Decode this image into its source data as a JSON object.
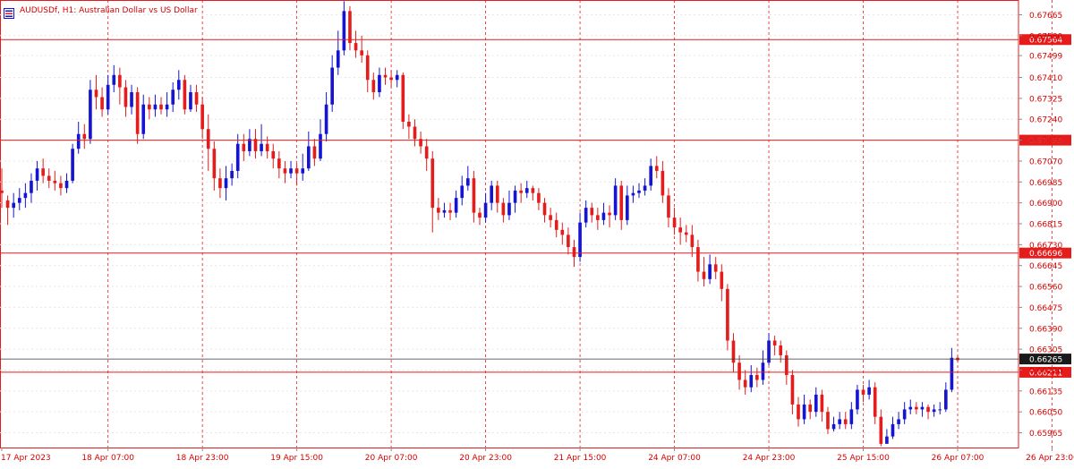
{
  "header": {
    "title": "AUDUSDf, H1:  Australian Dollar vs US Dollar",
    "menu_icon": "chart-menu-icon"
  },
  "colors": {
    "bull": "#1414d2",
    "bear": "#e51c1c",
    "level_line": "#e51c1c",
    "price_line": "#333333",
    "grid": "#e6e6e6",
    "vsep": "#e51c1c",
    "axis_text": "#d40000"
  },
  "chart_data": {
    "type": "candlestick",
    "symbol": "AUDUSDf",
    "timeframe": "H1",
    "title": "AUDUSDf, H1:  Australian Dollar vs US Dollar",
    "ylim": [
      0.65905,
      0.67725
    ],
    "y_ticks": [
      "0.67665",
      "0.67580",
      "0.67499",
      "0.67410",
      "0.67325",
      "0.67240",
      "0.67155",
      "0.67070",
      "0.66985",
      "0.66900",
      "0.66815",
      "0.66730",
      "0.66645",
      "0.66560",
      "0.66475",
      "0.66390",
      "0.66305",
      "0.66220",
      "0.66135",
      "0.66050",
      "0.65965"
    ],
    "x_labels": [
      "17 Apr 2023",
      "18 Apr 07:00",
      "18 Apr 23:00",
      "19 Apr 15:00",
      "20 Apr 07:00",
      "20 Apr 23:00",
      "21 Apr 15:00",
      "24 Apr 07:00",
      "24 Apr 23:00",
      "25 Apr 15:00",
      "26 Apr 07:00",
      "26 Apr 23:00"
    ],
    "levels": [
      {
        "label": "0.67564",
        "value": 0.67564
      },
      {
        "label": "0.67155",
        "value": 0.67155
      },
      {
        "label": "0.66696",
        "value": 0.66696
      },
      {
        "label": "0.66211",
        "value": 0.66211
      }
    ],
    "current_price": {
      "label": "0.66265",
      "value": 0.66265
    },
    "grid": true,
    "candles": [
      [
        0.6695,
        0.6694,
        0.6704,
        0.6688
      ],
      [
        0.6691,
        0.6688,
        0.6693,
        0.6681
      ],
      [
        0.6688,
        0.669,
        0.6694,
        0.6684
      ],
      [
        0.669,
        0.6692,
        0.6696,
        0.6687
      ],
      [
        0.6692,
        0.6694,
        0.6698,
        0.6688
      ],
      [
        0.6694,
        0.6699,
        0.6702,
        0.669
      ],
      [
        0.6699,
        0.6704,
        0.6707,
        0.6695
      ],
      [
        0.6704,
        0.6701,
        0.6708,
        0.6698
      ],
      [
        0.6701,
        0.6699,
        0.6704,
        0.6696
      ],
      [
        0.6699,
        0.6698,
        0.6703,
        0.6695
      ],
      [
        0.6698,
        0.6696,
        0.6701,
        0.6693
      ],
      [
        0.6696,
        0.6699,
        0.6702,
        0.6694
      ],
      [
        0.6699,
        0.6712,
        0.6714,
        0.6698
      ],
      [
        0.6712,
        0.6718,
        0.6723,
        0.671
      ],
      [
        0.6718,
        0.6716,
        0.6722,
        0.6712
      ],
      [
        0.6716,
        0.6736,
        0.674,
        0.6714
      ],
      [
        0.6736,
        0.6733,
        0.6742,
        0.6728
      ],
      [
        0.6733,
        0.6728,
        0.6737,
        0.6725
      ],
      [
        0.6728,
        0.6738,
        0.6742,
        0.6726
      ],
      [
        0.6738,
        0.6742,
        0.6746,
        0.6735
      ],
      [
        0.6742,
        0.6737,
        0.6745,
        0.673
      ],
      [
        0.6737,
        0.6729,
        0.674,
        0.6725
      ],
      [
        0.6729,
        0.6735,
        0.6738,
        0.6726
      ],
      [
        0.6735,
        0.6718,
        0.6737,
        0.6714
      ],
      [
        0.6718,
        0.673,
        0.6734,
        0.6716
      ],
      [
        0.673,
        0.6728,
        0.6733,
        0.6724
      ],
      [
        0.6728,
        0.673,
        0.6734,
        0.6725
      ],
      [
        0.673,
        0.6728,
        0.6733,
        0.6726
      ],
      [
        0.6728,
        0.673,
        0.6735,
        0.6725
      ],
      [
        0.673,
        0.6736,
        0.6739,
        0.6727
      ],
      [
        0.6736,
        0.674,
        0.6744,
        0.6732
      ],
      [
        0.674,
        0.6728,
        0.6742,
        0.6726
      ],
      [
        0.6728,
        0.6735,
        0.6738,
        0.6727
      ],
      [
        0.6735,
        0.673,
        0.6738,
        0.6727
      ],
      [
        0.673,
        0.672,
        0.6733,
        0.6716
      ],
      [
        0.672,
        0.6712,
        0.6726,
        0.6703
      ],
      [
        0.6712,
        0.67,
        0.6715,
        0.6695
      ],
      [
        0.67,
        0.6696,
        0.6704,
        0.6692
      ],
      [
        0.6696,
        0.67,
        0.6705,
        0.6691
      ],
      [
        0.67,
        0.6703,
        0.6706,
        0.6697
      ],
      [
        0.6703,
        0.6714,
        0.6718,
        0.67
      ],
      [
        0.6714,
        0.6711,
        0.6718,
        0.6707
      ],
      [
        0.6711,
        0.6716,
        0.672,
        0.6709
      ],
      [
        0.6716,
        0.6711,
        0.672,
        0.6708
      ],
      [
        0.6711,
        0.6714,
        0.6722,
        0.6709
      ],
      [
        0.6714,
        0.6711,
        0.6717,
        0.6708
      ],
      [
        0.6711,
        0.6708,
        0.6714,
        0.6704
      ],
      [
        0.6708,
        0.6704,
        0.6711,
        0.67
      ],
      [
        0.6704,
        0.6702,
        0.6707,
        0.6698
      ],
      [
        0.6702,
        0.6704,
        0.6707,
        0.67
      ],
      [
        0.6704,
        0.6702,
        0.6706,
        0.6697
      ],
      [
        0.6702,
        0.6704,
        0.671,
        0.6699
      ],
      [
        0.6704,
        0.6713,
        0.6719,
        0.6703
      ],
      [
        0.6713,
        0.6708,
        0.6716,
        0.6705
      ],
      [
        0.6708,
        0.6718,
        0.6724,
        0.6707
      ],
      [
        0.6718,
        0.673,
        0.6735,
        0.6715
      ],
      [
        0.673,
        0.6745,
        0.675,
        0.6727
      ],
      [
        0.6745,
        0.6752,
        0.676,
        0.6742
      ],
      [
        0.6752,
        0.6768,
        0.6772,
        0.675
      ],
      [
        0.6768,
        0.6755,
        0.677,
        0.6752
      ],
      [
        0.6755,
        0.6752,
        0.676,
        0.6749
      ],
      [
        0.6752,
        0.675,
        0.6758,
        0.6747
      ],
      [
        0.675,
        0.674,
        0.6752,
        0.6735
      ],
      [
        0.674,
        0.6735,
        0.6743,
        0.6732
      ],
      [
        0.6735,
        0.6742,
        0.6745,
        0.6733
      ],
      [
        0.6742,
        0.6741,
        0.6745,
        0.6738
      ],
      [
        0.6741,
        0.674,
        0.6744,
        0.6737
      ],
      [
        0.674,
        0.6742,
        0.6744,
        0.6737
      ],
      [
        0.6742,
        0.6723,
        0.6743,
        0.672
      ],
      [
        0.6723,
        0.6721,
        0.6726,
        0.6716
      ],
      [
        0.6721,
        0.6716,
        0.6724,
        0.6713
      ],
      [
        0.6716,
        0.6713,
        0.6719,
        0.671
      ],
      [
        0.6713,
        0.6708,
        0.6716,
        0.6703
      ],
      [
        0.6708,
        0.6688,
        0.6711,
        0.6678
      ],
      [
        0.6688,
        0.6686,
        0.6692,
        0.6683
      ],
      [
        0.6686,
        0.6687,
        0.669,
        0.6684
      ],
      [
        0.6687,
        0.6686,
        0.669,
        0.6683
      ],
      [
        0.6686,
        0.6692,
        0.6695,
        0.6684
      ],
      [
        0.6692,
        0.6697,
        0.6701,
        0.6689
      ],
      [
        0.6697,
        0.67,
        0.6705,
        0.6695
      ],
      [
        0.67,
        0.6686,
        0.6703,
        0.6682
      ],
      [
        0.6686,
        0.6684,
        0.6688,
        0.6681
      ],
      [
        0.6684,
        0.669,
        0.6694,
        0.6682
      ],
      [
        0.669,
        0.6697,
        0.6699,
        0.6687
      ],
      [
        0.6697,
        0.669,
        0.6699,
        0.6686
      ],
      [
        0.669,
        0.6685,
        0.6692,
        0.6682
      ],
      [
        0.6685,
        0.669,
        0.6695,
        0.6683
      ],
      [
        0.669,
        0.6695,
        0.6697,
        0.6686
      ],
      [
        0.6695,
        0.6694,
        0.6698,
        0.669
      ],
      [
        0.6694,
        0.6696,
        0.6699,
        0.6692
      ],
      [
        0.6696,
        0.6694,
        0.6697,
        0.6691
      ],
      [
        0.6694,
        0.669,
        0.6696,
        0.6687
      ],
      [
        0.669,
        0.6685,
        0.6692,
        0.6682
      ],
      [
        0.6685,
        0.6683,
        0.6688,
        0.668
      ],
      [
        0.6683,
        0.6679,
        0.6686,
        0.6676
      ],
      [
        0.6679,
        0.6677,
        0.6682,
        0.6673
      ],
      [
        0.6677,
        0.6672,
        0.668,
        0.6669
      ],
      [
        0.6672,
        0.6668,
        0.6675,
        0.6664
      ],
      [
        0.6668,
        0.6682,
        0.6686,
        0.6666
      ],
      [
        0.6682,
        0.6688,
        0.6691,
        0.668
      ],
      [
        0.6688,
        0.6685,
        0.669,
        0.6682
      ],
      [
        0.6685,
        0.6683,
        0.6688,
        0.6679
      ],
      [
        0.6683,
        0.6686,
        0.669,
        0.6681
      ],
      [
        0.6686,
        0.6685,
        0.6689,
        0.668
      ],
      [
        0.6685,
        0.6697,
        0.67,
        0.6683
      ],
      [
        0.6697,
        0.6683,
        0.6699,
        0.6679
      ],
      [
        0.6683,
        0.6693,
        0.6697,
        0.6681
      ],
      [
        0.6693,
        0.6694,
        0.6697,
        0.669
      ],
      [
        0.6694,
        0.6695,
        0.6698,
        0.6692
      ],
      [
        0.6695,
        0.6697,
        0.67,
        0.6693
      ],
      [
        0.6697,
        0.6705,
        0.6708,
        0.6695
      ],
      [
        0.6705,
        0.6703,
        0.6709,
        0.67
      ],
      [
        0.6703,
        0.6693,
        0.6707,
        0.669
      ],
      [
        0.6693,
        0.6684,
        0.6696,
        0.668
      ],
      [
        0.6684,
        0.668,
        0.6688,
        0.6677
      ],
      [
        0.668,
        0.6678,
        0.6684,
        0.6673
      ],
      [
        0.6678,
        0.6677,
        0.6681,
        0.6674
      ],
      [
        0.6677,
        0.6672,
        0.6681,
        0.6668
      ],
      [
        0.6672,
        0.6662,
        0.6675,
        0.6658
      ],
      [
        0.6662,
        0.6659,
        0.6668,
        0.6656
      ],
      [
        0.6659,
        0.6665,
        0.6669,
        0.6657
      ],
      [
        0.6665,
        0.6662,
        0.6668,
        0.6659
      ],
      [
        0.6662,
        0.6655,
        0.6665,
        0.665
      ],
      [
        0.6655,
        0.6634,
        0.6657,
        0.663
      ],
      [
        0.6634,
        0.6625,
        0.6637,
        0.6621
      ],
      [
        0.6625,
        0.6618,
        0.6628,
        0.6614
      ],
      [
        0.6618,
        0.6615,
        0.6622,
        0.6612
      ],
      [
        0.6615,
        0.662,
        0.6624,
        0.6613
      ],
      [
        0.662,
        0.6618,
        0.6623,
        0.6615
      ],
      [
        0.6618,
        0.6625,
        0.663,
        0.6616
      ],
      [
        0.6625,
        0.6634,
        0.6637,
        0.6624
      ],
      [
        0.6634,
        0.6632,
        0.6636,
        0.6628
      ],
      [
        0.6632,
        0.6628,
        0.6634,
        0.6625
      ],
      [
        0.6628,
        0.662,
        0.663,
        0.6616
      ],
      [
        0.662,
        0.6608,
        0.6622,
        0.6604
      ],
      [
        0.6608,
        0.6602,
        0.6611,
        0.6599
      ],
      [
        0.6602,
        0.6608,
        0.6612,
        0.66
      ],
      [
        0.6608,
        0.6605,
        0.661,
        0.6602
      ],
      [
        0.6605,
        0.6612,
        0.6615,
        0.6603
      ],
      [
        0.6612,
        0.6605,
        0.6614,
        0.6601
      ],
      [
        0.6605,
        0.6598,
        0.6607,
        0.6596
      ],
      [
        0.6598,
        0.66,
        0.6603,
        0.6597
      ],
      [
        0.66,
        0.6602,
        0.6605,
        0.6598
      ],
      [
        0.6602,
        0.66,
        0.6605,
        0.6598
      ],
      [
        0.66,
        0.6606,
        0.6609,
        0.6598
      ],
      [
        0.6606,
        0.6614,
        0.6616,
        0.6604
      ],
      [
        0.6614,
        0.6612,
        0.6616,
        0.6609
      ],
      [
        0.6612,
        0.6615,
        0.6618,
        0.661
      ],
      [
        0.6615,
        0.6603,
        0.6617,
        0.66
      ],
      [
        0.6603,
        0.6592,
        0.6606,
        0.6591
      ],
      [
        0.6592,
        0.6595,
        0.6598,
        0.6593
      ],
      [
        0.6595,
        0.66,
        0.6603,
        0.6594
      ],
      [
        0.66,
        0.6602,
        0.6605,
        0.6598
      ],
      [
        0.6602,
        0.6606,
        0.6609,
        0.66
      ],
      [
        0.6606,
        0.6607,
        0.661,
        0.6604
      ],
      [
        0.6607,
        0.6606,
        0.6609,
        0.6604
      ],
      [
        0.6606,
        0.6607,
        0.6609,
        0.6603
      ],
      [
        0.6607,
        0.6605,
        0.6608,
        0.6602
      ],
      [
        0.6605,
        0.6606,
        0.6608,
        0.6603
      ],
      [
        0.6606,
        0.6606,
        0.6609,
        0.6604
      ],
      [
        0.6606,
        0.6614,
        0.6617,
        0.6605
      ],
      [
        0.6614,
        0.6627,
        0.6631,
        0.6613
      ],
      [
        0.6627,
        0.6626,
        0.6628,
        0.6625
      ]
    ]
  }
}
